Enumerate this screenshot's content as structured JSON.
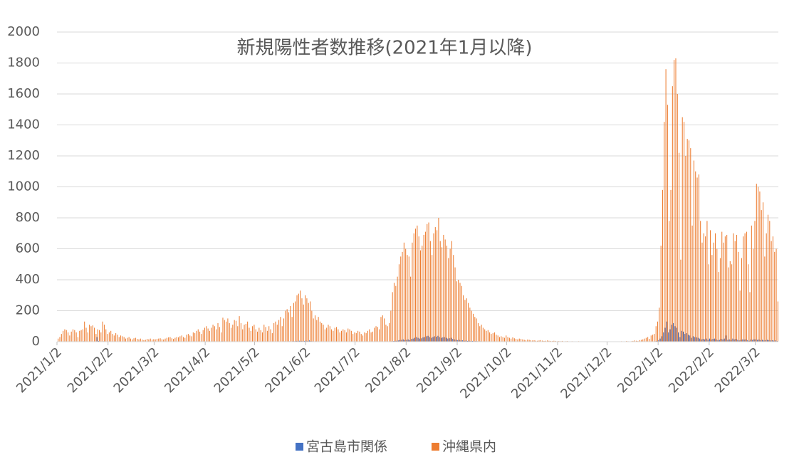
{
  "chart_data": {
    "type": "bar",
    "title": "新規陽性者数推移(2021年1月以降)",
    "categories": [
      "2021/1/2",
      null,
      null,
      null,
      null,
      null,
      null,
      null,
      null,
      null,
      null,
      null,
      null,
      null,
      null,
      null,
      null,
      null,
      null,
      null,
      null,
      null,
      null,
      null,
      null,
      null,
      null,
      null,
      null,
      null,
      null,
      "2021/2/2",
      null,
      null,
      null,
      null,
      null,
      null,
      null,
      null,
      null,
      null,
      null,
      null,
      null,
      null,
      null,
      null,
      null,
      null,
      null,
      null,
      null,
      null,
      null,
      null,
      null,
      null,
      null,
      "2021/3/2",
      null,
      null,
      null,
      null,
      null,
      null,
      null,
      null,
      null,
      null,
      null,
      null,
      null,
      null,
      null,
      null,
      null,
      null,
      null,
      null,
      null,
      null,
      null,
      null,
      null,
      null,
      null,
      null,
      null,
      null,
      "2021/4/2",
      null,
      null,
      null,
      null,
      null,
      null,
      null,
      null,
      null,
      null,
      null,
      null,
      null,
      null,
      null,
      null,
      null,
      null,
      null,
      null,
      null,
      null,
      null,
      null,
      null,
      null,
      null,
      null,
      null,
      "2021/5/2",
      null,
      null,
      null,
      null,
      null,
      null,
      null,
      null,
      null,
      null,
      null,
      null,
      null,
      null,
      null,
      null,
      null,
      null,
      null,
      null,
      null,
      null,
      null,
      null,
      null,
      null,
      null,
      null,
      null,
      null,
      "2021/6/2",
      null,
      null,
      null,
      null,
      null,
      null,
      null,
      null,
      null,
      null,
      null,
      null,
      null,
      null,
      null,
      null,
      null,
      null,
      null,
      null,
      null,
      null,
      null,
      null,
      null,
      null,
      null,
      null,
      null,
      "2021/7/2",
      null,
      null,
      null,
      null,
      null,
      null,
      null,
      null,
      null,
      null,
      null,
      null,
      null,
      null,
      null,
      null,
      null,
      null,
      null,
      null,
      null,
      null,
      null,
      null,
      null,
      null,
      null,
      null,
      null,
      null,
      "2021/8/2",
      null,
      null,
      null,
      null,
      null,
      null,
      null,
      null,
      null,
      null,
      null,
      null,
      null,
      null,
      null,
      null,
      null,
      null,
      null,
      null,
      null,
      null,
      null,
      null,
      null,
      null,
      null,
      null,
      null,
      null,
      "2021/9/2",
      null,
      null,
      null,
      null,
      null,
      null,
      null,
      null,
      null,
      null,
      null,
      null,
      null,
      null,
      null,
      null,
      null,
      null,
      null,
      null,
      null,
      null,
      null,
      null,
      null,
      null,
      null,
      null,
      null,
      "2021/10/2",
      null,
      null,
      null,
      null,
      null,
      null,
      null,
      null,
      null,
      null,
      null,
      null,
      null,
      null,
      null,
      null,
      null,
      null,
      null,
      null,
      null,
      null,
      null,
      null,
      null,
      null,
      null,
      null,
      null,
      null,
      "2021/11/2",
      null,
      null,
      null,
      null,
      null,
      null,
      null,
      null,
      null,
      null,
      null,
      null,
      null,
      null,
      null,
      null,
      null,
      null,
      null,
      null,
      null,
      null,
      null,
      null,
      null,
      null,
      null,
      null,
      null,
      "2021/12/2",
      null,
      null,
      null,
      null,
      null,
      null,
      null,
      null,
      null,
      null,
      null,
      null,
      null,
      null,
      null,
      null,
      null,
      null,
      null,
      null,
      null,
      null,
      null,
      null,
      null,
      null,
      null,
      null,
      null,
      null,
      "2022/1/2",
      null,
      null,
      null,
      null,
      null,
      null,
      null,
      null,
      null,
      null,
      null,
      null,
      null,
      null,
      null,
      null,
      null,
      null,
      null,
      null,
      null,
      null,
      null,
      null,
      null,
      null,
      null,
      null,
      null,
      null,
      "2022/2/2",
      null,
      null,
      null,
      null,
      null,
      null,
      null,
      null,
      null,
      null,
      null,
      null,
      null,
      null,
      null,
      null,
      null,
      null,
      null,
      null,
      null,
      null,
      null,
      null,
      null,
      null,
      null,
      "2022/3/2",
      null,
      null,
      null,
      null,
      null,
      null,
      null,
      null,
      null,
      null,
      null,
      null,
      null
    ],
    "series": [
      {
        "name": "宮古島市関係",
        "color": "#4472c4",
        "values": [
          0,
          0,
          1,
          0,
          2,
          1,
          0,
          0,
          1,
          2,
          0,
          1,
          0,
          0,
          2,
          1,
          3,
          1,
          0,
          2,
          1,
          0,
          1,
          0,
          30,
          5,
          2,
          1,
          3,
          1,
          0,
          1,
          0,
          0,
          1,
          0,
          0,
          0,
          1,
          0,
          0,
          0,
          0,
          1,
          0,
          0,
          0,
          0,
          0,
          1,
          0,
          0,
          0,
          0,
          0,
          0,
          1,
          0,
          0,
          0,
          0,
          0,
          0,
          0,
          1,
          0,
          0,
          0,
          0,
          0,
          0,
          1,
          0,
          0,
          0,
          0,
          1,
          0,
          0,
          0,
          0,
          0,
          1,
          0,
          0,
          0,
          1,
          0,
          0,
          0,
          1,
          0,
          0,
          1,
          2,
          1,
          0,
          2,
          1,
          0,
          3,
          2,
          1,
          2,
          1,
          0,
          1,
          2,
          1,
          0,
          2,
          1,
          0,
          1,
          2,
          1,
          0,
          0,
          1,
          1,
          0,
          1,
          0,
          1,
          0,
          2,
          1,
          0,
          1,
          0,
          0,
          2,
          1,
          1,
          2,
          2,
          1,
          2,
          3,
          2,
          2,
          3,
          2,
          4,
          3,
          5,
          4,
          6,
          5,
          4,
          5,
          6,
          5,
          8,
          4,
          3,
          2,
          3,
          2,
          1,
          2,
          1,
          1,
          2,
          1,
          1,
          0,
          1,
          1,
          2,
          1,
          0,
          1,
          1,
          0,
          0,
          1,
          1,
          0,
          0,
          1,
          0,
          1,
          0,
          0,
          0,
          1,
          0,
          1,
          1,
          0,
          1,
          1,
          2,
          1,
          0,
          2,
          2,
          1,
          1,
          0,
          1,
          2,
          3,
          4,
          5,
          6,
          8,
          10,
          12,
          15,
          10,
          12,
          15,
          10,
          18,
          20,
          25,
          30,
          25,
          20,
          22,
          28,
          30,
          35,
          38,
          30,
          25,
          30,
          35,
          32,
          38,
          30,
          25,
          28,
          30,
          25,
          20,
          22,
          25,
          18,
          15,
          12,
          10,
          12,
          8,
          9,
          6,
          7,
          5,
          6,
          4,
          5,
          3,
          4,
          3,
          2,
          3,
          2,
          2,
          1,
          2,
          1,
          1,
          1,
          0,
          1,
          1,
          0,
          0,
          1,
          0,
          0,
          0,
          0,
          1,
          0,
          0,
          0,
          0,
          1,
          0,
          0,
          0,
          0,
          0,
          0,
          0,
          0,
          1,
          0,
          0,
          0,
          0,
          0,
          0,
          0,
          0,
          0,
          0,
          0,
          0,
          0,
          0,
          0,
          0,
          0,
          0,
          0,
          0,
          0,
          0,
          0,
          0,
          0,
          0,
          0,
          0,
          0,
          0,
          0,
          0,
          0,
          0,
          0,
          0,
          0,
          0,
          0,
          0,
          0,
          0,
          0,
          0,
          0,
          0,
          0,
          0,
          0,
          0,
          0,
          0,
          0,
          0,
          0,
          0,
          0,
          0,
          0,
          0,
          0,
          0,
          0,
          0,
          0,
          0,
          0,
          1,
          0,
          1,
          1,
          2,
          2,
          3,
          5,
          10,
          20,
          35,
          60,
          90,
          130,
          60,
          80,
          110,
          120,
          100,
          90,
          60,
          30,
          70,
          65,
          50,
          55,
          45,
          40,
          25,
          35,
          30,
          28,
          25,
          20,
          15,
          18,
          15,
          20,
          12,
          20,
          15,
          18,
          20,
          15,
          10,
          12,
          18,
          15,
          20,
          40,
          12,
          15,
          12,
          20,
          15,
          18,
          12,
          8,
          12,
          15,
          14,
          15,
          10,
          6,
          14,
          12,
          15,
          15,
          12,
          14,
          10,
          12,
          8,
          10,
          12,
          10,
          8,
          9,
          7,
          8,
          4
        ]
      },
      {
        "name": "沖縄県内",
        "color": "#ed7d31",
        "values": [
          20,
          30,
          50,
          70,
          80,
          75,
          60,
          40,
          65,
          80,
          75,
          60,
          30,
          70,
          75,
          80,
          130,
          90,
          60,
          110,
          100,
          105,
          90,
          50,
          80,
          75,
          60,
          130,
          110,
          80,
          50,
          60,
          70,
          50,
          40,
          55,
          45,
          30,
          40,
          35,
          30,
          20,
          25,
          30,
          20,
          15,
          22,
          25,
          18,
          15,
          20,
          14,
          10,
          12,
          18,
          15,
          20,
          14,
          16,
          15,
          18,
          20,
          22,
          16,
          14,
          20,
          25,
          28,
          30,
          22,
          18,
          25,
          30,
          28,
          35,
          40,
          30,
          25,
          45,
          50,
          40,
          35,
          60,
          55,
          70,
          80,
          65,
          50,
          75,
          90,
          100,
          85,
          70,
          90,
          110,
          100,
          80,
          120,
          95,
          60,
          155,
          140,
          130,
          150,
          120,
          90,
          110,
          140,
          135,
          100,
          165,
          120,
          80,
          110,
          115,
          130,
          90,
          70,
          100,
          110,
          80,
          65,
          90,
          75,
          60,
          110,
          95,
          70,
          100,
          80,
          55,
          120,
          130,
          110,
          140,
          160,
          100,
          150,
          200,
          210,
          190,
          230,
          160,
          250,
          260,
          300,
          310,
          330,
          280,
          240,
          300,
          280,
          250,
          260,
          200,
          150,
          170,
          140,
          160,
          130,
          120,
          110,
          80,
          90,
          110,
          100,
          80,
          70,
          90,
          95,
          80,
          60,
          70,
          80,
          75,
          60,
          85,
          80,
          70,
          50,
          60,
          55,
          70,
          65,
          50,
          40,
          60,
          55,
          70,
          80,
          60,
          65,
          90,
          100,
          95,
          80,
          160,
          170,
          150,
          110,
          100,
          120,
          200,
          320,
          380,
          360,
          420,
          500,
          550,
          580,
          640,
          600,
          560,
          550,
          420,
          640,
          700,
          730,
          750,
          680,
          590,
          620,
          690,
          710,
          760,
          770,
          650,
          560,
          700,
          740,
          720,
          800,
          650,
          610,
          690,
          660,
          620,
          540,
          600,
          650,
          560,
          480,
          390,
          400,
          380,
          360,
          300,
          270,
          280,
          250,
          220,
          200,
          180,
          160,
          150,
          120,
          100,
          110,
          90,
          80,
          70,
          75,
          60,
          50,
          55,
          60,
          45,
          40,
          30,
          35,
          30,
          25,
          40,
          30,
          25,
          20,
          28,
          22,
          18,
          15,
          20,
          18,
          15,
          12,
          10,
          14,
          12,
          10,
          8,
          9,
          7,
          6,
          8,
          10,
          7,
          5,
          6,
          8,
          6,
          5,
          4,
          6,
          5,
          3,
          4,
          3,
          5,
          2,
          3,
          4,
          2,
          1,
          3,
          2,
          1,
          2,
          3,
          1,
          2,
          1,
          0,
          2,
          1,
          2,
          1,
          1,
          0,
          2,
          1,
          0,
          1,
          1,
          2,
          1,
          0,
          1,
          2,
          1,
          0,
          1,
          2,
          1,
          3,
          2,
          1,
          4,
          3,
          2,
          3,
          5,
          8,
          6,
          4,
          10,
          12,
          15,
          20,
          25,
          30,
          18,
          40,
          45,
          50,
          100,
          130,
          220,
          620,
          980,
          1420,
          1760,
          1530,
          780,
          980,
          1650,
          1820,
          1830,
          1600,
          1220,
          530,
          1450,
          1420,
          1200,
          1310,
          1300,
          1250,
          750,
          1170,
          1100,
          1060,
          1080,
          780,
          640,
          700,
          680,
          780,
          500,
          720,
          560,
          640,
          700,
          600,
          450,
          540,
          710,
          640,
          680,
          690,
          480,
          520,
          500,
          700,
          650,
          690,
          580,
          330,
          540,
          680,
          700,
          710,
          500,
          320,
          750,
          600,
          780,
          1020,
          1000,
          970,
          850,
          900,
          550,
          700,
          820,
          780,
          650,
          680,
          580,
          600,
          260
        ]
      }
    ],
    "ylim": [
      0,
      2000
    ],
    "yticks": [
      0,
      200,
      400,
      600,
      800,
      1000,
      1200,
      1400,
      1600,
      1800,
      2000
    ],
    "grid": true,
    "legend": "bottom"
  }
}
